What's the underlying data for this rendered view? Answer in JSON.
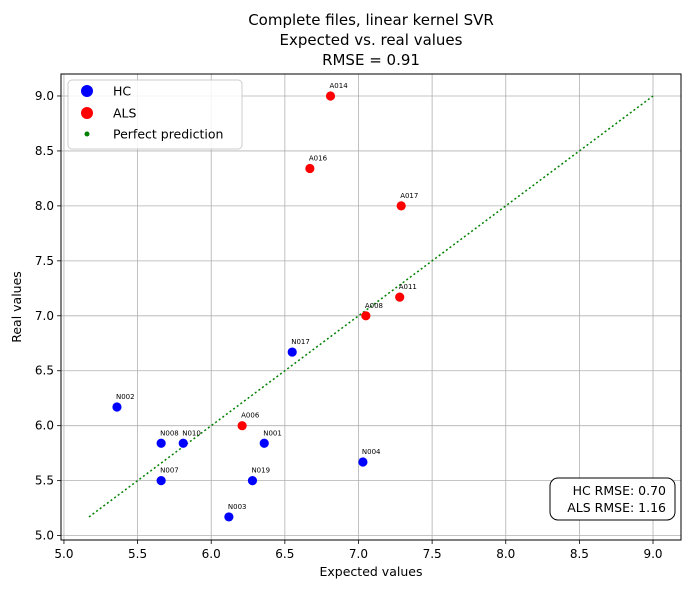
{
  "chart_data": {
    "type": "scatter",
    "title": [
      "Complete files, linear kernel SVR",
      "Expected vs. real values",
      "RMSE = 0.91"
    ],
    "xlabel": "Expected values",
    "ylabel": "Real values",
    "xlim": [
      4.98,
      9.19
    ],
    "ylim": [
      4.96,
      9.2
    ],
    "xticks": [
      5.0,
      5.5,
      6.0,
      6.5,
      7.0,
      7.5,
      8.0,
      8.5,
      9.0
    ],
    "yticks": [
      5.0,
      5.5,
      6.0,
      6.5,
      7.0,
      7.5,
      8.0,
      8.5,
      9.0
    ],
    "tick_labels_x": [
      "5.0",
      "5.5",
      "6.0",
      "6.5",
      "7.0",
      "7.5",
      "8.0",
      "8.5",
      "9.0"
    ],
    "tick_labels_y": [
      "5.0",
      "5.5",
      "6.0",
      "6.5",
      "7.0",
      "7.5",
      "8.0",
      "8.5",
      "9.0"
    ],
    "grid": true,
    "legend_position": "top-left",
    "legend": [
      {
        "label": "HC",
        "marker": "circle",
        "color": "#0000ff"
      },
      {
        "label": "ALS",
        "marker": "circle",
        "color": "#ff0000"
      },
      {
        "label": "Perfect prediction",
        "marker": "dot",
        "color": "#008000"
      }
    ],
    "series": [
      {
        "name": "HC",
        "color": "#0000ff",
        "points": [
          {
            "label": "N002",
            "x": 5.36,
            "y": 6.17
          },
          {
            "label": "N008",
            "x": 5.66,
            "y": 5.84
          },
          {
            "label": "N010",
            "x": 5.81,
            "y": 5.84
          },
          {
            "label": "N007",
            "x": 5.66,
            "y": 5.5
          },
          {
            "label": "N003",
            "x": 6.12,
            "y": 5.17
          },
          {
            "label": "N019",
            "x": 6.28,
            "y": 5.5
          },
          {
            "label": "N001",
            "x": 6.36,
            "y": 5.84
          },
          {
            "label": "N017",
            "x": 6.55,
            "y": 6.67
          },
          {
            "label": "N004",
            "x": 7.03,
            "y": 5.67
          }
        ]
      },
      {
        "name": "ALS",
        "color": "#ff0000",
        "points": [
          {
            "label": "A014",
            "x": 6.81,
            "y": 9.0
          },
          {
            "label": "A016",
            "x": 6.67,
            "y": 8.34
          },
          {
            "label": "A017",
            "x": 7.29,
            "y": 8.0
          },
          {
            "label": "A011",
            "x": 7.28,
            "y": 7.17
          },
          {
            "label": "A008",
            "x": 7.05,
            "y": 7.0
          },
          {
            "label": "A006",
            "x": 6.21,
            "y": 6.0
          }
        ]
      },
      {
        "name": "Perfect prediction",
        "color": "#008000",
        "style": "dotted",
        "line": [
          [
            5.17,
            5.17
          ],
          [
            9.0,
            9.0
          ]
        ]
      }
    ],
    "annotation": [
      "HC RMSE: 0.70",
      "ALS RMSE: 1.16"
    ]
  }
}
